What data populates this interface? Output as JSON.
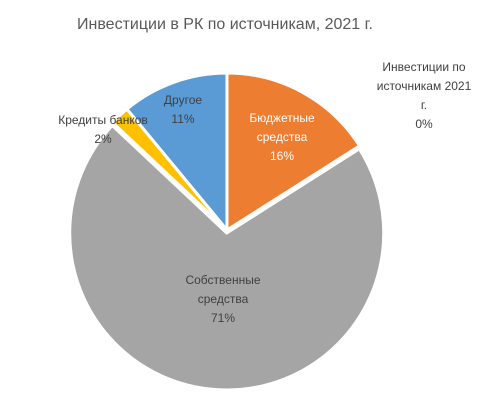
{
  "chart_data": {
    "type": "pie",
    "title": "Инвестиции в РК по источникам, 2021 г.",
    "slices": [
      {
        "label_lines": [
          "Бюджетные",
          "средства"
        ],
        "label": "Бюджетные средства",
        "value": 16,
        "value_label": "16%",
        "color": "#ED7D31",
        "label_color": "#ffffff"
      },
      {
        "label_lines": [
          "Собственные",
          "средства"
        ],
        "label": "Собственные средства",
        "value": 71,
        "value_label": "71%",
        "color": "#A5A5A5",
        "label_color": "#404040"
      },
      {
        "label_lines": [
          "Кредиты банков"
        ],
        "label": "Кредиты банков",
        "value": 2,
        "value_label": "2%",
        "color": "#FFC000",
        "label_color": "#404040"
      },
      {
        "label_lines": [
          "Другое"
        ],
        "label": "Другое",
        "value": 11,
        "value_label": "11%",
        "color": "#5B9BD5",
        "label_color": "#404040"
      }
    ],
    "extra_label": {
      "lines": [
        "Инвестиции по",
        "источникам 2021",
        "г."
      ],
      "value_label": "0%"
    }
  }
}
